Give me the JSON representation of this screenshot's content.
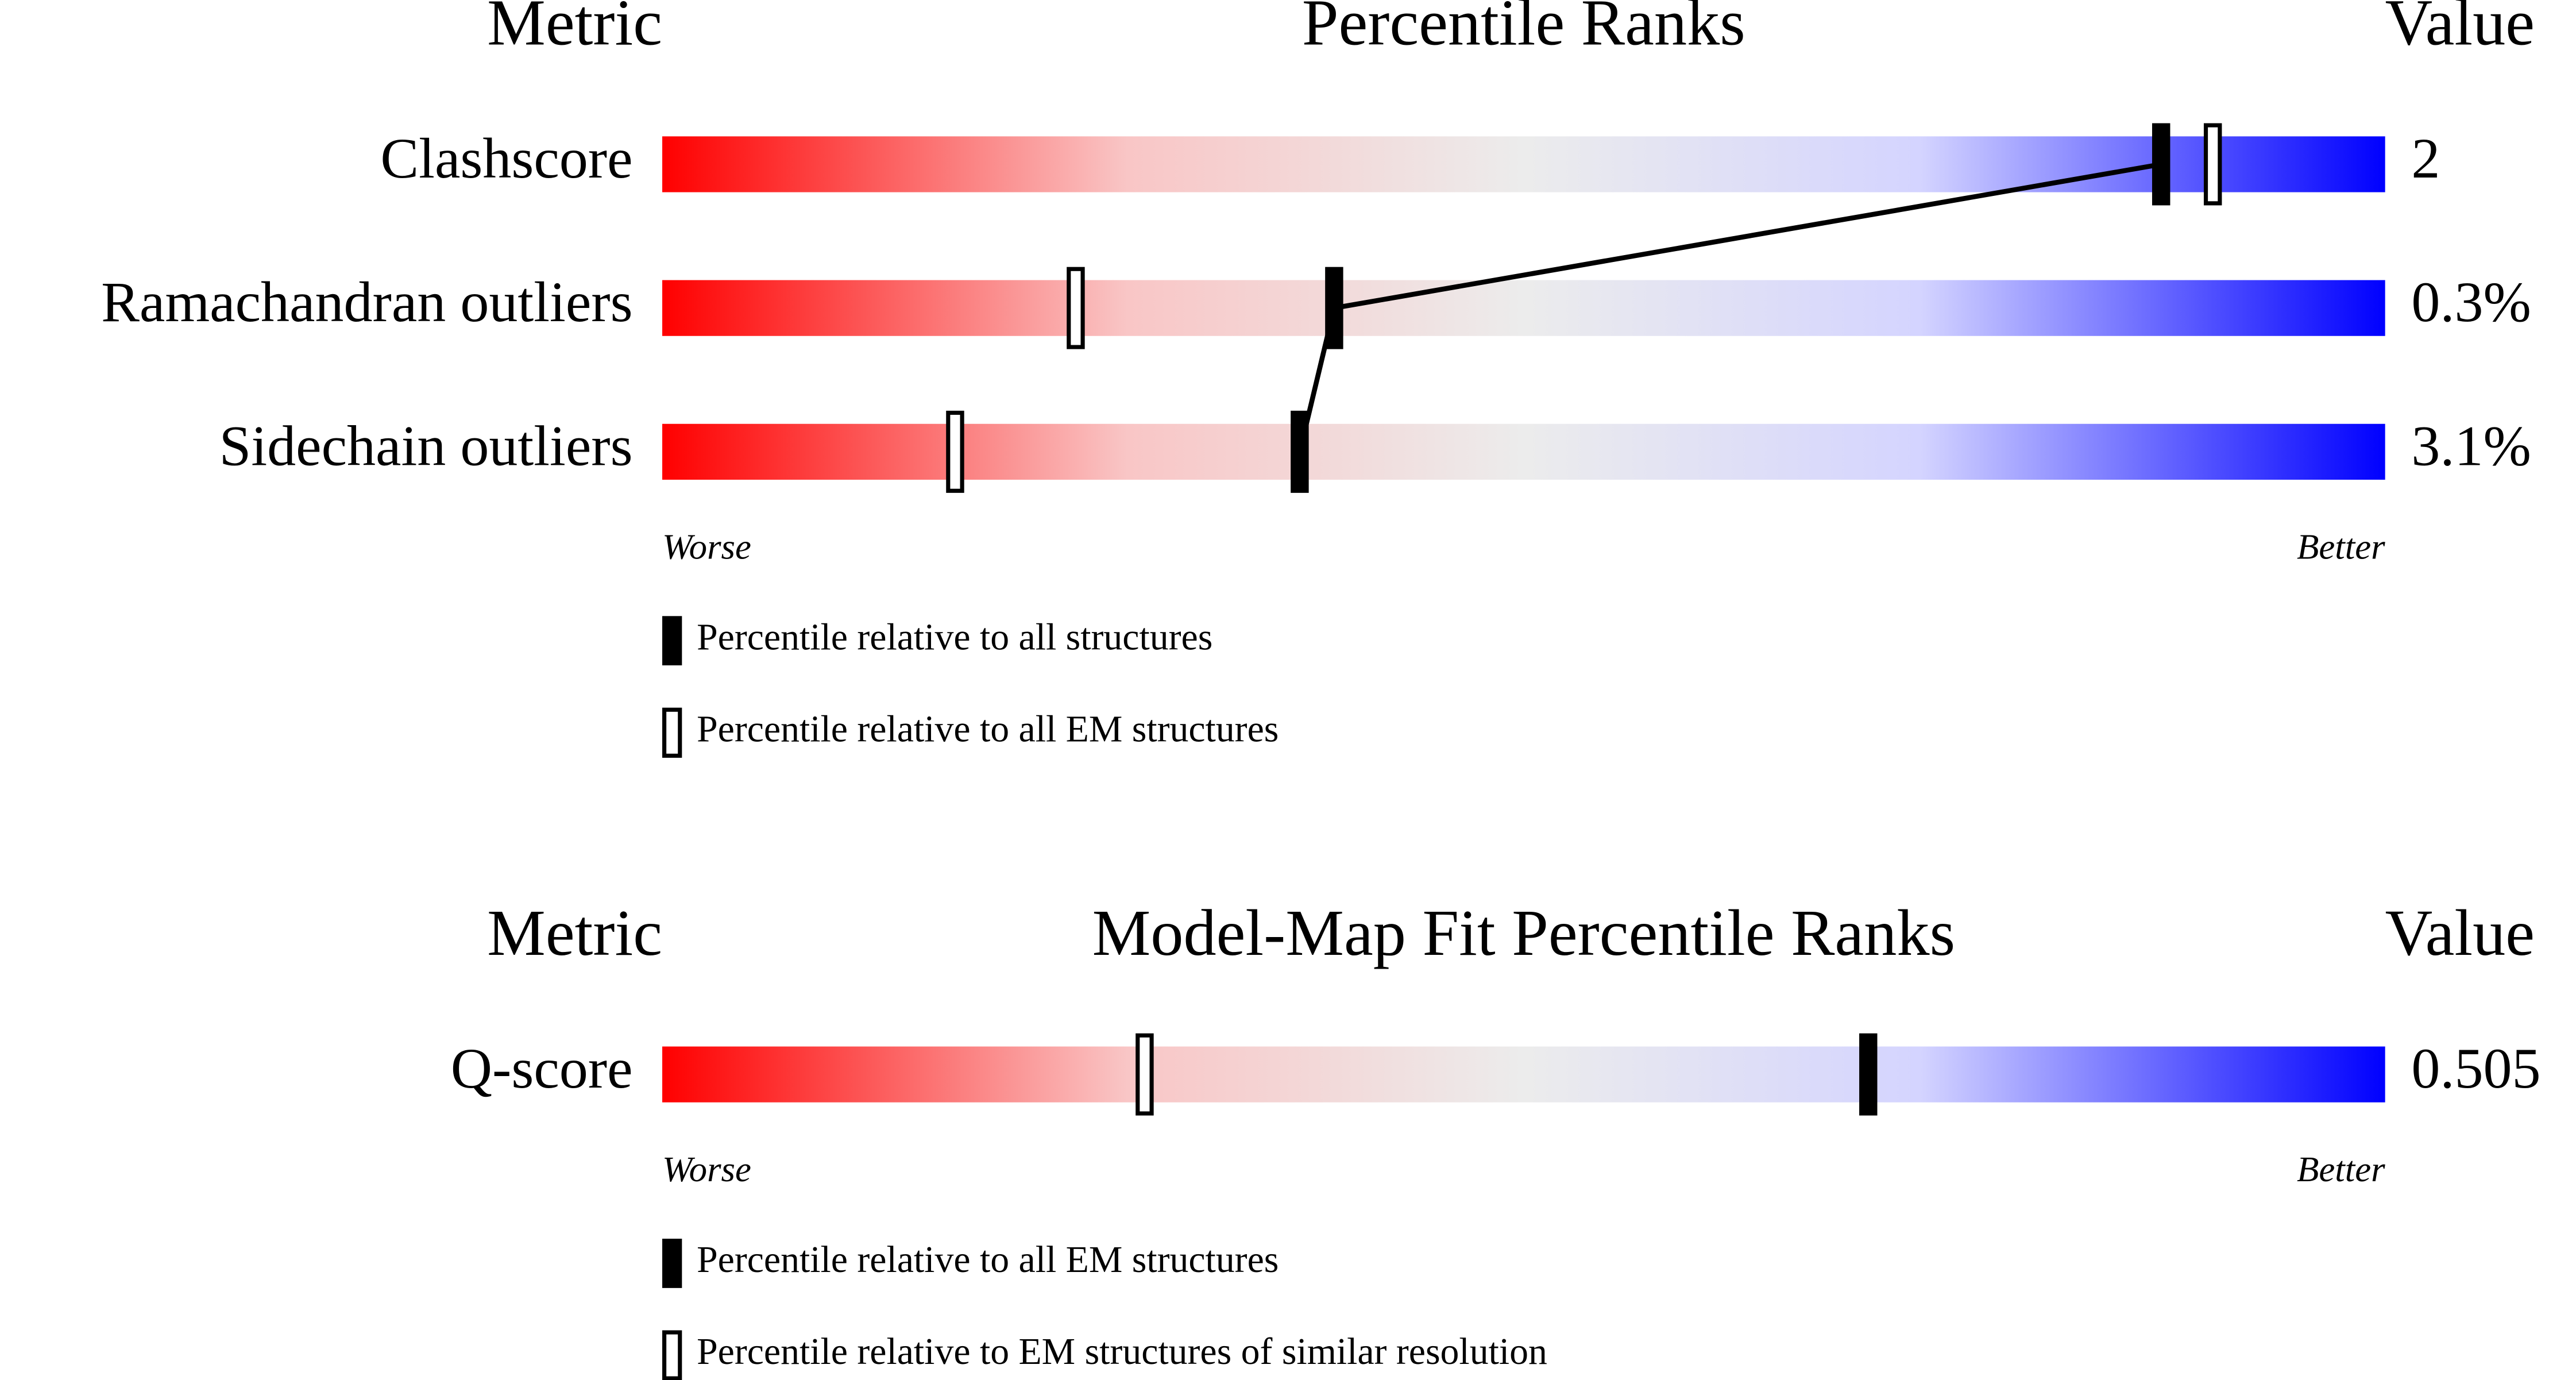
{
  "chart_data": [
    {
      "type": "slider",
      "header_metric": "Metric",
      "title": "Percentile Ranks",
      "header_value": "Value",
      "categories": [
        "Clashscore",
        "Ramachandran outliers",
        "Sidechain outliers"
      ],
      "metric_values": [
        "2",
        "0.3%",
        "3.1%"
      ],
      "xlim": [
        0,
        100
      ],
      "worse_label": "Worse",
      "better_label": "Better",
      "series": [
        {
          "name": "Percentile relative to all structures",
          "color": "#000000",
          "marker": "filled",
          "connect": true,
          "values": [
            87,
            39,
            37
          ]
        },
        {
          "name": "Percentile relative to all EM structures",
          "color": "#000000",
          "marker": "open",
          "values": [
            90,
            24,
            17
          ]
        }
      ]
    },
    {
      "type": "slider",
      "header_metric": "Metric",
      "title": "Model-Map Fit Percentile Ranks",
      "header_value": "Value",
      "categories": [
        "Q-score"
      ],
      "metric_values": [
        "0.505"
      ],
      "xlim": [
        0,
        100
      ],
      "worse_label": "Worse",
      "better_label": "Better",
      "series": [
        {
          "name": "Percentile relative to all EM structures",
          "color": "#000000",
          "marker": "filled",
          "values": [
            70
          ]
        },
        {
          "name": "Percentile relative to EM structures of similar resolution",
          "color": "#000000",
          "marker": "open",
          "values": [
            28
          ]
        }
      ]
    }
  ]
}
